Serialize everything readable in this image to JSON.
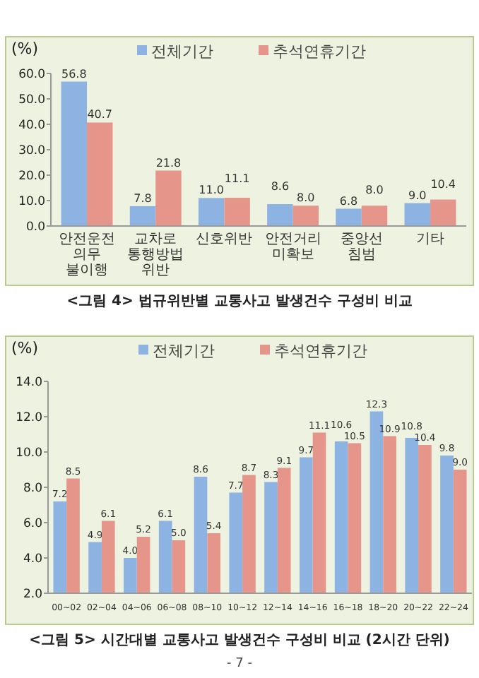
{
  "chart_data": [
    {
      "type": "bar",
      "title": "<그림 4> 법규위반별 교통사고 발생건수 구성비 비교",
      "ylabel": "(%)",
      "categories": [
        "안전운전의무 불이행",
        "교차로 통행방법위반",
        "신호위반",
        "안전거리 미확보",
        "중앙선 침범",
        "기타"
      ],
      "series": [
        {
          "name": "전체기간",
          "color": "#8db3e2",
          "values": [
            56.8,
            7.8,
            11.0,
            8.6,
            6.8,
            9.0
          ],
          "value_labels": [
            "56.8",
            "7.8",
            "11.0",
            "8.6",
            "6.8",
            "9.0"
          ]
        },
        {
          "name": "추석연휴기간",
          "color": "#e6958a",
          "values": [
            40.7,
            21.8,
            11.1,
            8.0,
            8.0,
            10.4
          ],
          "value_labels": [
            "40.7",
            "21.8",
            "11.1",
            "8.0",
            "8.0",
            "10.4"
          ]
        }
      ],
      "ylim": [
        0,
        60
      ],
      "yticks": [
        {
          "value": 0,
          "label": "0.0"
        },
        {
          "value": 10,
          "label": "10.0"
        },
        {
          "value": 20,
          "label": "20.0"
        },
        {
          "value": 30,
          "label": "30.0"
        },
        {
          "value": 40,
          "label": "40.0"
        },
        {
          "value": 50,
          "label": "50.0"
        },
        {
          "value": 60,
          "label": "60.0"
        }
      ],
      "grid": false,
      "legend": "top"
    },
    {
      "type": "bar",
      "title": "<그림 5> 시간대별 교통사고 발생건수 구성비 비교 (2시간 단위)",
      "ylabel": "(%)",
      "categories": [
        "00~02",
        "02~04",
        "04~06",
        "06~08",
        "08~10",
        "10~12",
        "12~14",
        "14~16",
        "16~18",
        "18~20",
        "20~22",
        "22~24"
      ],
      "series": [
        {
          "name": "전체기간",
          "color": "#8db3e2",
          "values": [
            7.2,
            4.9,
            4.0,
            6.1,
            8.6,
            7.7,
            8.3,
            9.7,
            10.6,
            12.3,
            10.8,
            9.8
          ],
          "value_labels": [
            "7.2",
            "4.9",
            "4.0",
            "6.1",
            "8.6",
            "7.7",
            "8.3",
            "9.7",
            "10.6",
            "12.3",
            "10.8",
            "9.8"
          ]
        },
        {
          "name": "추석연휴기간",
          "color": "#e6958a",
          "values": [
            8.5,
            6.1,
            5.2,
            5.0,
            5.4,
            8.7,
            9.1,
            11.1,
            10.5,
            10.9,
            10.4,
            9.0
          ],
          "value_labels": [
            "8.5",
            "6.1",
            "5.2",
            "5.0",
            "5.4",
            "8.7",
            "9.1",
            "11.1",
            "10.5",
            "10.9",
            "10.4",
            "9.0"
          ]
        }
      ],
      "ylim": [
        2,
        14
      ],
      "yticks": [
        {
          "value": 2,
          "label": "2.0"
        },
        {
          "value": 4,
          "label": "4.0"
        },
        {
          "value": 6,
          "label": "6.0"
        },
        {
          "value": 8,
          "label": "8.0"
        },
        {
          "value": 10,
          "label": "10.0"
        },
        {
          "value": 12,
          "label": "12.0"
        },
        {
          "value": 14,
          "label": "14.0"
        }
      ],
      "grid": false,
      "legend": "top",
      "annotations": [
        "- 7 -"
      ]
    }
  ]
}
